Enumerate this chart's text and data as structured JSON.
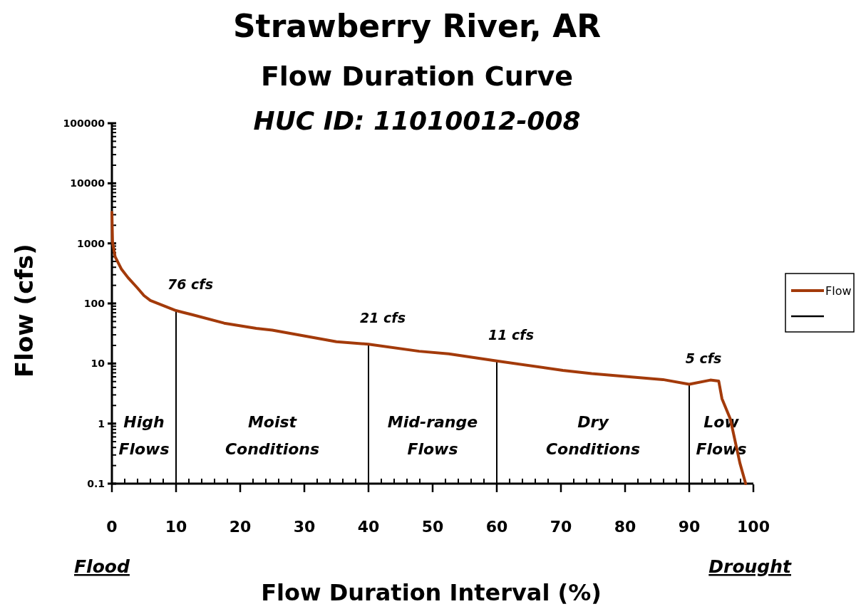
{
  "chart_data": {
    "type": "line",
    "title": "Strawberry River, AR",
    "subtitle": "Flow Duration Curve\nHUC ID:  11010012-008",
    "xlabel": "Flow Duration Interval (%)",
    "ylabel": "Flow (cfs)",
    "x": [
      0,
      0.1,
      0.5,
      1.5,
      2.5,
      4,
      5,
      6,
      10,
      12.5,
      17.5,
      22.5,
      25,
      35,
      40,
      47.9,
      52.5,
      60,
      70.3,
      74.8,
      85.9,
      90,
      93.3,
      94.6,
      95.1,
      96.4,
      97.9,
      98.8
    ],
    "series": [
      {
        "name": "Flow",
        "color": "#a33a0a",
        "values": [
          3300,
          1050,
          600,
          370,
          270,
          180,
          135,
          112,
          76,
          65,
          47,
          38.5,
          36,
          23,
          21,
          16,
          14.5,
          11,
          7.7,
          6.8,
          5.4,
          4.5,
          5.3,
          5.1,
          2.6,
          1.2,
          0.22,
          0.1
        ]
      }
    ],
    "log": "y",
    "xlim": [
      0,
      100
    ],
    "xticks": [
      0,
      10,
      20,
      30,
      40,
      50,
      60,
      70,
      80,
      90,
      100
    ],
    "ylim": [
      0.1,
      100000
    ],
    "yticks": [
      {
        "value": 0.1,
        "label": "0.1"
      },
      1,
      10,
      100,
      1000,
      10000,
      100000
    ],
    "ref_lines": [
      {
        "axis": "x",
        "value": 10,
        "label": "76 cfs",
        "color": "#000000"
      },
      {
        "axis": "x",
        "value": 40,
        "label": "21 cfs",
        "color": "#000000"
      },
      {
        "axis": "x",
        "value": 60,
        "label": "11 cfs",
        "color": "#000000"
      },
      {
        "axis": "x",
        "value": 90,
        "label": "5 cfs",
        "color": "#000000"
      }
    ],
    "annotations": [
      "High Flows",
      "Moist Conditions",
      "Mid-range Flows",
      "Dry Conditions",
      "Low Flows",
      "Flood",
      "Drought"
    ],
    "legend": "right",
    "grid": false
  }
}
